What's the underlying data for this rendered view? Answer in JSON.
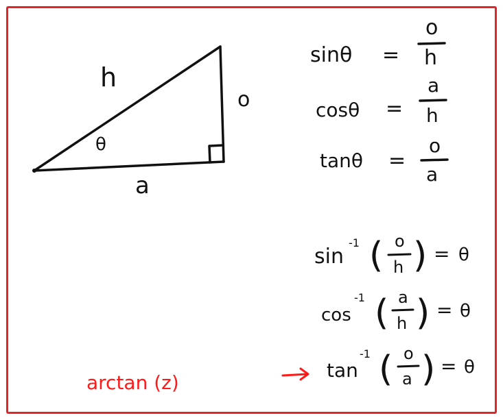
{
  "triangle": {
    "hypotenuse_label": "h",
    "opposite_label": "o",
    "adjacent_label": "a",
    "angle_label": "θ"
  },
  "equations": [
    {
      "lhs": "sinθ",
      "num": "o",
      "den": "h"
    },
    {
      "lhs": "cosθ",
      "num": "a",
      "den": "h"
    },
    {
      "lhs": "tanθ",
      "num": "o",
      "den": "a"
    }
  ],
  "inverses": [
    {
      "fn": "sin",
      "sup": "-1",
      "num": "o",
      "den": "h",
      "result": "θ"
    },
    {
      "fn": "cos",
      "sup": "-1",
      "num": "a",
      "den": "h",
      "result": "θ"
    },
    {
      "fn": "tan",
      "sup": "-1",
      "num": "o",
      "den": "a",
      "result": "θ"
    }
  ],
  "annotation": {
    "text": "arctan (z)",
    "arrow": "→"
  },
  "equals": "=",
  "colors": {
    "frame": "#e5232b",
    "ink": "#111111",
    "annotation": "#ff1a1a"
  }
}
